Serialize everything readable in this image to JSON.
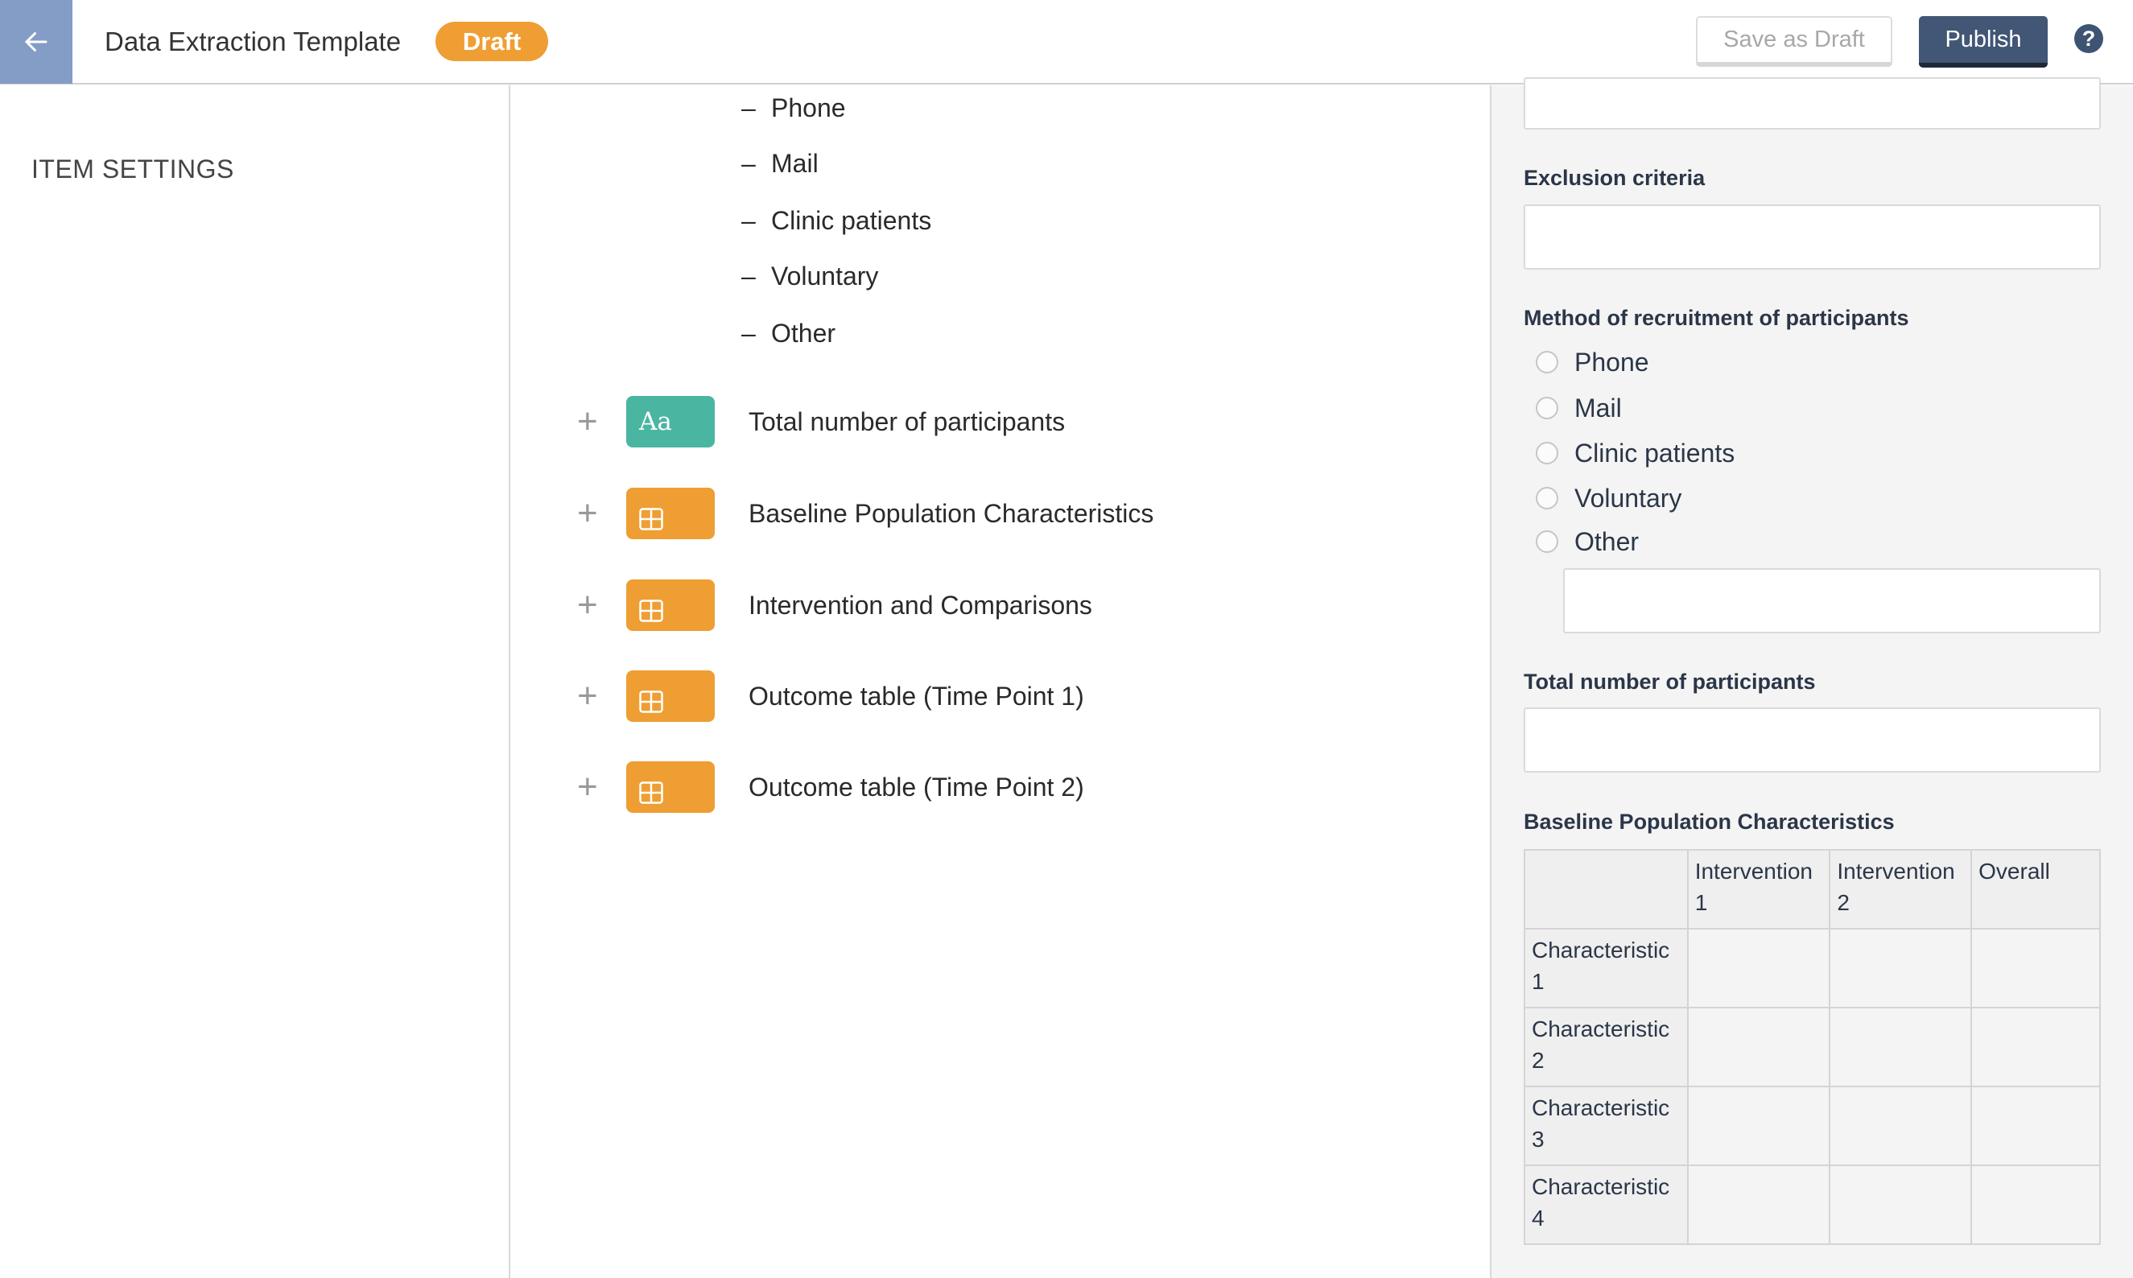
{
  "header": {
    "title": "Data Extraction Template",
    "status_badge": "Draft",
    "save_draft_label": "Save as Draft",
    "publish_label": "Publish",
    "help_label": "?"
  },
  "sidebar": {
    "title": "ITEM SETTINGS"
  },
  "middle": {
    "recruitment_options": [
      "Phone",
      "Mail",
      "Clinic patients",
      "Voluntary",
      "Other"
    ],
    "items": [
      {
        "type": "text",
        "icon_label": "Aa",
        "label": "Total number of participants"
      },
      {
        "type": "table",
        "label": "Baseline Population Characteristics"
      },
      {
        "type": "table",
        "label": "Intervention and Comparisons"
      },
      {
        "type": "table",
        "label": "Outcome table (Time Point 1)"
      },
      {
        "type": "table",
        "label": "Outcome table (Time Point 2)"
      }
    ]
  },
  "preview": {
    "exclusion_label": "Exclusion criteria",
    "recruitment_label": "Method of recruitment of participants",
    "recruitment_options": [
      "Phone",
      "Mail",
      "Clinic patients",
      "Voluntary",
      "Other"
    ],
    "total_label": "Total number of participants",
    "baseline_label": "Baseline Population Characteristics",
    "baseline_table": {
      "headers": [
        "",
        "Intervention 1",
        "Intervention 2",
        "Overall"
      ],
      "rows": [
        "Characteristic 1",
        "Characteristic 2",
        "Characteristic 3",
        "Characteristic 4"
      ]
    }
  },
  "colors": {
    "accent_back": "#839dc6",
    "draft": "#ef9e33",
    "publish": "#425675",
    "text_badge": "#4ab6a1",
    "table_badge": "#ef9e33"
  }
}
